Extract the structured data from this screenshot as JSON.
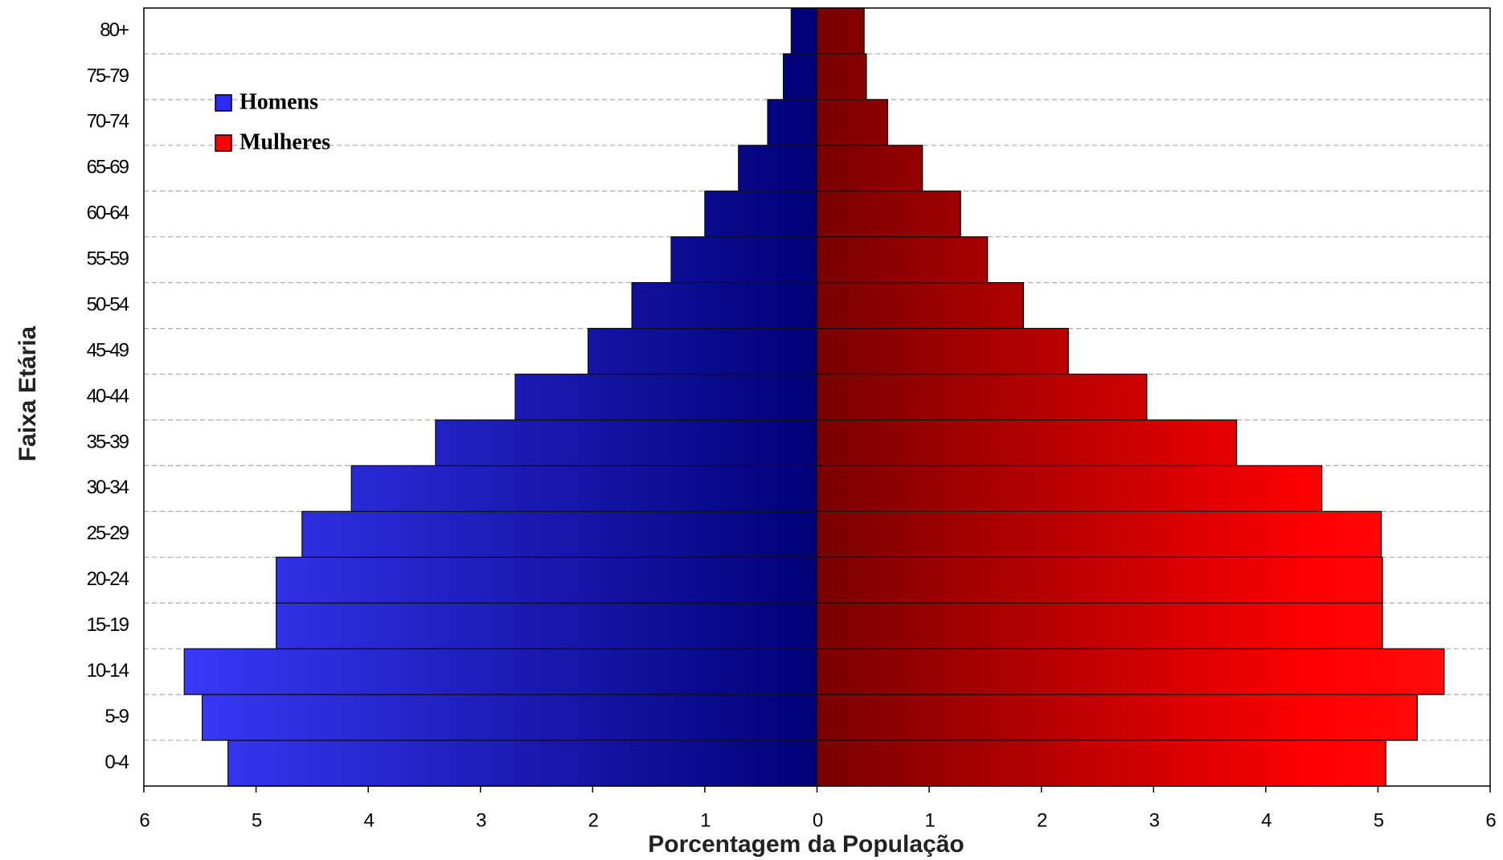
{
  "chart_data": {
    "type": "pyramid",
    "xlabel": "Porcentagem da População",
    "ylabel": "Faixa Etária",
    "categories": [
      "0-4",
      "5-9",
      "10-14",
      "15-19",
      "20-24",
      "25-29",
      "30-34",
      "35-39",
      "40-44",
      "45-49",
      "50-54",
      "55-59",
      "60-64",
      "65-69",
      "70-74",
      "75-79",
      "80+"
    ],
    "series": [
      {
        "name": "Homens",
        "color": "#2a2aff",
        "values": [
          -5.25,
          -5.48,
          -5.64,
          -4.82,
          -4.82,
          -4.59,
          -4.15,
          -3.4,
          -2.69,
          -2.04,
          -1.65,
          -1.3,
          -1.0,
          -0.7,
          -0.44,
          -0.3,
          -0.23
        ]
      },
      {
        "name": "Mulheres",
        "color": "#ff0000",
        "values": [
          5.07,
          5.35,
          5.59,
          5.04,
          5.04,
          5.03,
          4.5,
          3.74,
          2.94,
          2.24,
          1.84,
          1.52,
          1.28,
          0.94,
          0.63,
          0.44,
          0.42
        ]
      }
    ],
    "xlim": [
      -6,
      6
    ],
    "xticks": [
      {
        "value": -6,
        "label": "6"
      },
      {
        "value": -5,
        "label": "5"
      },
      {
        "value": -4,
        "label": "4"
      },
      {
        "value": -3,
        "label": "3"
      },
      {
        "value": -2,
        "label": "2"
      },
      {
        "value": -1,
        "label": "1"
      },
      0,
      1,
      2,
      3,
      4,
      5,
      6
    ],
    "grid": true,
    "legend": "upper left"
  }
}
